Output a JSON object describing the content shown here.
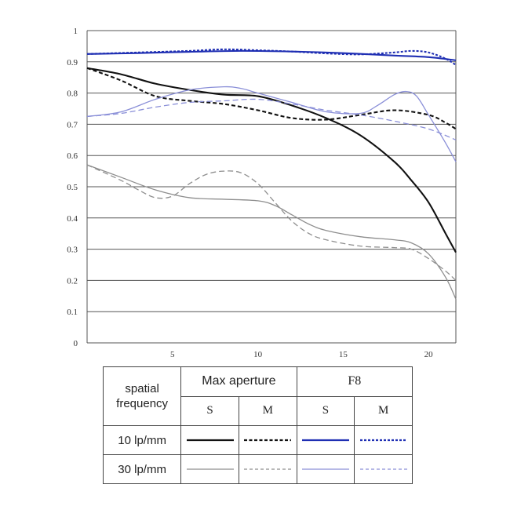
{
  "chart_data": {
    "type": "line",
    "xlim": [
      0,
      21.6
    ],
    "ylim": [
      0,
      1
    ],
    "x_ticks": [
      5,
      10,
      15,
      20
    ],
    "y_ticks": [
      {
        "value": 0,
        "label": "0"
      },
      {
        "value": 0.1,
        "label": "0.1"
      },
      {
        "value": 0.2,
        "label": "0.2"
      },
      {
        "value": 0.3,
        "label": "0.3"
      },
      {
        "value": 0.4,
        "label": "0.4"
      },
      {
        "value": 0.5,
        "label": "0.5"
      },
      {
        "value": 0.6,
        "label": "0.6"
      },
      {
        "value": 0.7,
        "label": "0.7"
      },
      {
        "value": 0.8,
        "label": "0.8"
      },
      {
        "value": 0.9,
        "label": "0.9"
      },
      {
        "value": 1,
        "label": "1"
      }
    ],
    "grid": "horizontal",
    "series": [
      {
        "name": "Max aperture S 10 lp/mm",
        "color": "#111111",
        "style": "solid",
        "x": [
          0,
          2,
          4,
          6,
          8,
          10,
          12,
          14,
          16,
          18,
          19,
          20,
          21,
          21.6
        ],
        "y": [
          0.88,
          0.86,
          0.83,
          0.81,
          0.795,
          0.79,
          0.76,
          0.72,
          0.665,
          0.58,
          0.52,
          0.45,
          0.35,
          0.29
        ]
      },
      {
        "name": "Max aperture M 10 lp/mm",
        "color": "#111111",
        "style": "dashed",
        "x": [
          0,
          2,
          4,
          6,
          8,
          10,
          12,
          14,
          16,
          18,
          20,
          21,
          21.6
        ],
        "y": [
          0.88,
          0.84,
          0.79,
          0.775,
          0.765,
          0.745,
          0.72,
          0.715,
          0.73,
          0.745,
          0.73,
          0.705,
          0.685
        ]
      },
      {
        "name": "F8 S 10 lp/mm",
        "color": "#1f2fb3",
        "style": "solid",
        "x": [
          0,
          3,
          6,
          9,
          12,
          15,
          18,
          20,
          21.6
        ],
        "y": [
          0.925,
          0.928,
          0.932,
          0.935,
          0.933,
          0.928,
          0.92,
          0.915,
          0.905
        ]
      },
      {
        "name": "F8 M 10 lp/mm",
        "color": "#1f2fb3",
        "style": "dotted",
        "x": [
          0,
          3,
          6,
          8,
          10,
          12,
          14,
          16,
          18,
          19,
          20,
          21,
          21.6
        ],
        "y": [
          0.925,
          0.93,
          0.935,
          0.94,
          0.937,
          0.933,
          0.927,
          0.924,
          0.93,
          0.935,
          0.93,
          0.91,
          0.89
        ]
      },
      {
        "name": "Max aperture S 30 lp/mm",
        "color": "#8e8e8e",
        "style": "solid",
        "x": [
          0,
          2,
          4,
          6,
          8,
          10,
          11,
          12,
          13,
          14,
          16,
          18,
          19,
          20,
          21,
          21.6
        ],
        "y": [
          0.57,
          0.53,
          0.49,
          0.465,
          0.46,
          0.455,
          0.44,
          0.41,
          0.38,
          0.36,
          0.34,
          0.33,
          0.32,
          0.285,
          0.21,
          0.14
        ]
      },
      {
        "name": "Max aperture M 30 lp/mm",
        "color": "#8e8e8e",
        "style": "dashed",
        "x": [
          0,
          2,
          3,
          4,
          5,
          6,
          7,
          8,
          9,
          10,
          11,
          12,
          13,
          14,
          16,
          18,
          19,
          20,
          21,
          21.6
        ],
        "y": [
          0.57,
          0.52,
          0.49,
          0.465,
          0.47,
          0.51,
          0.54,
          0.55,
          0.545,
          0.51,
          0.45,
          0.39,
          0.35,
          0.33,
          0.31,
          0.305,
          0.3,
          0.27,
          0.23,
          0.2
        ]
      },
      {
        "name": "F8 S 30 lp/mm",
        "color": "#8a8fd8",
        "style": "solid",
        "x": [
          0,
          2,
          4,
          6,
          8,
          9,
          10,
          12,
          14,
          16,
          17,
          18,
          18.7,
          19.3,
          20,
          21,
          21.6
        ],
        "y": [
          0.725,
          0.74,
          0.78,
          0.81,
          0.82,
          0.815,
          0.8,
          0.77,
          0.74,
          0.735,
          0.76,
          0.795,
          0.805,
          0.79,
          0.73,
          0.64,
          0.58
        ]
      },
      {
        "name": "F8 M 30 lp/mm",
        "color": "#8a8fd8",
        "style": "dashed",
        "x": [
          0,
          2,
          4,
          6,
          8,
          10,
          12,
          14,
          16,
          18,
          20,
          21.6
        ],
        "y": [
          0.725,
          0.735,
          0.755,
          0.77,
          0.775,
          0.78,
          0.765,
          0.745,
          0.73,
          0.71,
          0.685,
          0.65
        ]
      }
    ]
  },
  "legend": {
    "spatial_header_line1": "spatial",
    "spatial_header_line2": "frequency",
    "group1": "Max aperture",
    "group2": "F8",
    "sub_s": "S",
    "sub_m": "M",
    "row1": "10 lp/mm",
    "row2": "30 lp/mm",
    "colors": {
      "black": "#111111",
      "blue": "#1f2fb3",
      "gray": "#8e8e8e",
      "lavender": "#8a8fd8"
    }
  }
}
